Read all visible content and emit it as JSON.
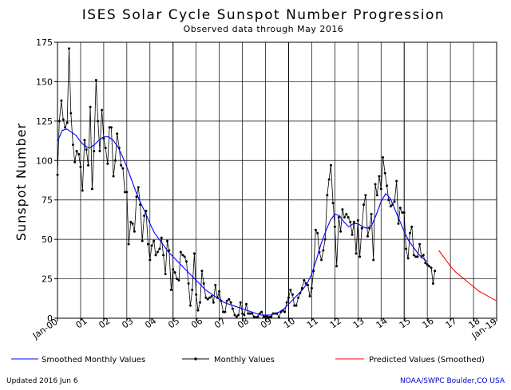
{
  "chart_data": {
    "type": "line",
    "title": "ISES Solar Cycle Sunspot Number Progression",
    "subtitle": "Observed data through May 2016",
    "ylabel": "Sunspot Number",
    "ylim": [
      0,
      175
    ],
    "y_ticks": [
      0,
      25,
      50,
      75,
      100,
      125,
      150,
      175
    ],
    "xlim": [
      2000.0,
      2019.0
    ],
    "x_tick_labels": [
      {
        "x": 2000.0,
        "label": "Jan-00",
        "rotated": true
      },
      {
        "x": 2001.0,
        "label": "01"
      },
      {
        "x": 2002.0,
        "label": "02"
      },
      {
        "x": 2003.0,
        "label": "03"
      },
      {
        "x": 2004.0,
        "label": "04"
      },
      {
        "x": 2005.0,
        "label": "05"
      },
      {
        "x": 2006.0,
        "label": "06"
      },
      {
        "x": 2007.0,
        "label": "07"
      },
      {
        "x": 2008.0,
        "label": "08"
      },
      {
        "x": 2009.0,
        "label": "09"
      },
      {
        "x": 2010.0,
        "label": "10"
      },
      {
        "x": 2011.0,
        "label": "11"
      },
      {
        "x": 2012.0,
        "label": "12"
      },
      {
        "x": 2013.0,
        "label": "13"
      },
      {
        "x": 2014.0,
        "label": "14"
      },
      {
        "x": 2015.0,
        "label": "15"
      },
      {
        "x": 2016.0,
        "label": "16"
      },
      {
        "x": 2017.0,
        "label": "17"
      },
      {
        "x": 2018.0,
        "label": "18"
      },
      {
        "x": 2019.0,
        "label": "Jan-19",
        "rotated": true
      }
    ],
    "grid": true,
    "legend_position": "bottom",
    "series": [
      {
        "name": "Smoothed Monthly Values",
        "color": "#0000ff",
        "marker": "none",
        "points": [
          [
            2000.0,
            112
          ],
          [
            2000.2,
            119
          ],
          [
            2000.4,
            120
          ],
          [
            2000.6,
            118
          ],
          [
            2000.8,
            116
          ],
          [
            2001.0,
            112
          ],
          [
            2001.2,
            109
          ],
          [
            2001.4,
            108
          ],
          [
            2001.6,
            110
          ],
          [
            2001.8,
            113
          ],
          [
            2002.0,
            115
          ],
          [
            2002.2,
            115
          ],
          [
            2002.4,
            113
          ],
          [
            2002.6,
            109
          ],
          [
            2002.8,
            103
          ],
          [
            2003.0,
            96
          ],
          [
            2003.2,
            88
          ],
          [
            2003.4,
            80
          ],
          [
            2003.6,
            73
          ],
          [
            2003.8,
            67
          ],
          [
            2004.0,
            60
          ],
          [
            2004.2,
            54
          ],
          [
            2004.4,
            50
          ],
          [
            2004.6,
            46
          ],
          [
            2004.8,
            42
          ],
          [
            2005.0,
            39
          ],
          [
            2005.2,
            36
          ],
          [
            2005.4,
            33
          ],
          [
            2005.6,
            30
          ],
          [
            2005.8,
            27
          ],
          [
            2006.0,
            24
          ],
          [
            2006.2,
            21
          ],
          [
            2006.4,
            18
          ],
          [
            2006.6,
            16
          ],
          [
            2006.8,
            14
          ],
          [
            2007.0,
            12
          ],
          [
            2007.2,
            10
          ],
          [
            2007.4,
            9
          ],
          [
            2007.6,
            8
          ],
          [
            2007.8,
            7
          ],
          [
            2008.0,
            6
          ],
          [
            2008.2,
            5
          ],
          [
            2008.4,
            4
          ],
          [
            2008.6,
            3
          ],
          [
            2008.8,
            2
          ],
          [
            2009.0,
            2
          ],
          [
            2009.2,
            2
          ],
          [
            2009.4,
            3
          ],
          [
            2009.6,
            4
          ],
          [
            2009.8,
            6
          ],
          [
            2010.0,
            9
          ],
          [
            2010.2,
            12
          ],
          [
            2010.4,
            15
          ],
          [
            2010.6,
            18
          ],
          [
            2010.8,
            22
          ],
          [
            2011.0,
            28
          ],
          [
            2011.2,
            37
          ],
          [
            2011.4,
            47
          ],
          [
            2011.6,
            55
          ],
          [
            2011.8,
            62
          ],
          [
            2012.0,
            66
          ],
          [
            2012.2,
            65
          ],
          [
            2012.4,
            61
          ],
          [
            2012.6,
            58
          ],
          [
            2012.8,
            60
          ],
          [
            2013.0,
            60
          ],
          [
            2013.2,
            58
          ],
          [
            2013.4,
            57
          ],
          [
            2013.6,
            59
          ],
          [
            2013.8,
            66
          ],
          [
            2014.0,
            74
          ],
          [
            2014.2,
            79
          ],
          [
            2014.4,
            76
          ],
          [
            2014.6,
            69
          ],
          [
            2014.8,
            62
          ],
          [
            2015.0,
            55
          ],
          [
            2015.2,
            49
          ],
          [
            2015.4,
            45
          ],
          [
            2015.6,
            41
          ],
          [
            2015.8,
            38
          ],
          [
            2016.0,
            36
          ]
        ]
      },
      {
        "name": "Monthly Values",
        "color": "#000000",
        "marker": "dot",
        "points": [
          [
            2000.0,
            91
          ],
          [
            2000.08,
            125
          ],
          [
            2000.17,
            138
          ],
          [
            2000.25,
            126
          ],
          [
            2000.33,
            121
          ],
          [
            2000.42,
            124
          ],
          [
            2000.5,
            171
          ],
          [
            2000.58,
            130
          ],
          [
            2000.67,
            110
          ],
          [
            2000.75,
            99
          ],
          [
            2000.83,
            106
          ],
          [
            2000.92,
            104
          ],
          [
            2001.0,
            96
          ],
          [
            2001.08,
            81
          ],
          [
            2001.17,
            113
          ],
          [
            2001.25,
            107
          ],
          [
            2001.33,
            97
          ],
          [
            2001.42,
            134
          ],
          [
            2001.5,
            82
          ],
          [
            2001.58,
            106
          ],
          [
            2001.67,
            151
          ],
          [
            2001.75,
            125
          ],
          [
            2001.83,
            106
          ],
          [
            2001.92,
            132
          ],
          [
            2002.0,
            114
          ],
          [
            2002.08,
            108
          ],
          [
            2002.17,
            98
          ],
          [
            2002.25,
            121
          ],
          [
            2002.33,
            121
          ],
          [
            2002.42,
            90
          ],
          [
            2002.5,
            100
          ],
          [
            2002.58,
            117
          ],
          [
            2002.67,
            108
          ],
          [
            2002.75,
            97
          ],
          [
            2002.83,
            95
          ],
          [
            2002.92,
            80
          ],
          [
            2003.0,
            80
          ],
          [
            2003.08,
            47
          ],
          [
            2003.17,
            61
          ],
          [
            2003.25,
            60
          ],
          [
            2003.33,
            55
          ],
          [
            2003.42,
            77
          ],
          [
            2003.5,
            83
          ],
          [
            2003.58,
            72
          ],
          [
            2003.67,
            49
          ],
          [
            2003.75,
            65
          ],
          [
            2003.83,
            68
          ],
          [
            2003.92,
            47
          ],
          [
            2004.0,
            37
          ],
          [
            2004.08,
            46
          ],
          [
            2004.17,
            49
          ],
          [
            2004.25,
            40
          ],
          [
            2004.33,
            42
          ],
          [
            2004.42,
            44
          ],
          [
            2004.5,
            51
          ],
          [
            2004.58,
            40
          ],
          [
            2004.67,
            28
          ],
          [
            2004.75,
            49
          ],
          [
            2004.83,
            43
          ],
          [
            2004.92,
            18
          ],
          [
            2005.0,
            31
          ],
          [
            2005.08,
            29
          ],
          [
            2005.17,
            25
          ],
          [
            2005.25,
            24
          ],
          [
            2005.33,
            42
          ],
          [
            2005.42,
            40
          ],
          [
            2005.5,
            39
          ],
          [
            2005.58,
            36
          ],
          [
            2005.67,
            22
          ],
          [
            2005.75,
            8
          ],
          [
            2005.83,
            18
          ],
          [
            2005.92,
            41
          ],
          [
            2006.0,
            15
          ],
          [
            2006.08,
            5
          ],
          [
            2006.17,
            10
          ],
          [
            2006.25,
            30
          ],
          [
            2006.33,
            22
          ],
          [
            2006.42,
            13
          ],
          [
            2006.5,
            12
          ],
          [
            2006.58,
            13
          ],
          [
            2006.67,
            14
          ],
          [
            2006.75,
            10
          ],
          [
            2006.83,
            21
          ],
          [
            2006.92,
            13
          ],
          [
            2007.0,
            17
          ],
          [
            2007.08,
            11
          ],
          [
            2007.17,
            4
          ],
          [
            2007.25,
            4
          ],
          [
            2007.33,
            11
          ],
          [
            2007.42,
            12
          ],
          [
            2007.5,
            10
          ],
          [
            2007.58,
            6
          ],
          [
            2007.67,
            2
          ],
          [
            2007.75,
            1
          ],
          [
            2007.83,
            2
          ],
          [
            2007.92,
            10
          ],
          [
            2008.0,
            3
          ],
          [
            2008.08,
            2
          ],
          [
            2008.17,
            9
          ],
          [
            2008.25,
            3
          ],
          [
            2008.33,
            3
          ],
          [
            2008.42,
            3
          ],
          [
            2008.5,
            1
          ],
          [
            2008.58,
            0.5
          ],
          [
            2008.67,
            1
          ],
          [
            2008.75,
            3
          ],
          [
            2008.83,
            4
          ],
          [
            2008.92,
            1
          ],
          [
            2009.0,
            1
          ],
          [
            2009.08,
            1
          ],
          [
            2009.17,
            0.7
          ],
          [
            2009.25,
            1
          ],
          [
            2009.33,
            3
          ],
          [
            2009.42,
            3
          ],
          [
            2009.5,
            3
          ],
          [
            2009.58,
            0.5
          ],
          [
            2009.67,
            4
          ],
          [
            2009.75,
            5
          ],
          [
            2009.83,
            4
          ],
          [
            2009.92,
            10
          ],
          [
            2010.0,
            13
          ],
          [
            2010.08,
            18
          ],
          [
            2010.17,
            15
          ],
          [
            2010.25,
            8
          ],
          [
            2010.33,
            8
          ],
          [
            2010.42,
            13
          ],
          [
            2010.5,
            16
          ],
          [
            2010.58,
            19
          ],
          [
            2010.67,
            24
          ],
          [
            2010.75,
            22
          ],
          [
            2010.83,
            21
          ],
          [
            2010.92,
            14
          ],
          [
            2011.0,
            19
          ],
          [
            2011.08,
            30
          ],
          [
            2011.17,
            56
          ],
          [
            2011.25,
            54
          ],
          [
            2011.33,
            42
          ],
          [
            2011.42,
            37
          ],
          [
            2011.5,
            43
          ],
          [
            2011.58,
            50
          ],
          [
            2011.67,
            78
          ],
          [
            2011.75,
            88
          ],
          [
            2011.83,
            97
          ],
          [
            2011.92,
            73
          ],
          [
            2012.0,
            58
          ],
          [
            2012.08,
            33
          ],
          [
            2012.17,
            64
          ],
          [
            2012.25,
            55
          ],
          [
            2012.33,
            69
          ],
          [
            2012.42,
            64
          ],
          [
            2012.5,
            66
          ],
          [
            2012.58,
            64
          ],
          [
            2012.67,
            61
          ],
          [
            2012.75,
            53
          ],
          [
            2012.83,
            61
          ],
          [
            2012.92,
            41
          ],
          [
            2013.0,
            62
          ],
          [
            2013.08,
            39
          ],
          [
            2013.17,
            57
          ],
          [
            2013.25,
            72
          ],
          [
            2013.33,
            78
          ],
          [
            2013.42,
            52
          ],
          [
            2013.5,
            57
          ],
          [
            2013.58,
            66
          ],
          [
            2013.67,
            37
          ],
          [
            2013.75,
            85
          ],
          [
            2013.83,
            78
          ],
          [
            2013.92,
            90
          ],
          [
            2014.0,
            82
          ],
          [
            2014.08,
            102
          ],
          [
            2014.17,
            92
          ],
          [
            2014.25,
            84
          ],
          [
            2014.33,
            75
          ],
          [
            2014.42,
            71
          ],
          [
            2014.5,
            72
          ],
          [
            2014.58,
            74
          ],
          [
            2014.67,
            87
          ],
          [
            2014.75,
            60
          ],
          [
            2014.83,
            70
          ],
          [
            2014.92,
            67
          ],
          [
            2015.0,
            67
          ],
          [
            2015.08,
            44
          ],
          [
            2015.17,
            38
          ],
          [
            2015.25,
            54
          ],
          [
            2015.33,
            58
          ],
          [
            2015.42,
            40
          ],
          [
            2015.5,
            39
          ],
          [
            2015.58,
            39
          ],
          [
            2015.67,
            47
          ],
          [
            2015.75,
            39
          ],
          [
            2015.83,
            40
          ],
          [
            2015.92,
            35
          ],
          [
            2016.0,
            34
          ],
          [
            2016.08,
            33
          ],
          [
            2016.17,
            32
          ],
          [
            2016.25,
            22
          ],
          [
            2016.33,
            30
          ]
        ]
      },
      {
        "name": "Predicted Values (Smoothed)",
        "color": "#ff0000",
        "marker": "none",
        "points": [
          [
            2016.5,
            43
          ],
          [
            2016.75,
            38
          ],
          [
            2017.0,
            33
          ],
          [
            2017.25,
            29
          ],
          [
            2017.5,
            26
          ],
          [
            2017.75,
            23
          ],
          [
            2018.0,
            20
          ],
          [
            2018.25,
            17
          ],
          [
            2018.5,
            15
          ],
          [
            2018.75,
            13
          ],
          [
            2019.0,
            11
          ]
        ]
      }
    ]
  },
  "footer": {
    "updated": "Updated 2016 Jun  6",
    "credit": "NOAA/SWPC Boulder,CO USA"
  }
}
